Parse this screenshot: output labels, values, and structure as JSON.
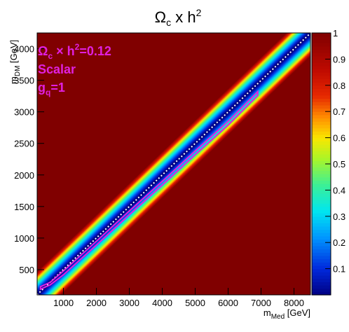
{
  "chart_data": {
    "type": "heatmap",
    "title": {
      "base": "Ω",
      "sub": "c",
      "rest": " x h",
      "sup": "2"
    },
    "xlabel": {
      "base": "m",
      "sub": "Med",
      "rest": " [GeV]"
    },
    "ylabel": {
      "base": "m",
      "sub": "DM",
      "rest": " [GeV]"
    },
    "xlim": [
      200,
      8500
    ],
    "ylim": [
      100,
      4250
    ],
    "x_ticks": [
      1000,
      2000,
      3000,
      4000,
      5000,
      6000,
      7000,
      8000
    ],
    "x_tick_labels": [
      "1000",
      "2000",
      "3000",
      "4000",
      "5000",
      "6000",
      "7000",
      "8000"
    ],
    "y_ticks": [
      500,
      1000,
      1500,
      2000,
      2500,
      3000,
      3500,
      4000
    ],
    "y_tick_labels": [
      "500",
      "1000",
      "1500",
      "2000",
      "2500",
      "3000",
      "3500",
      "4000"
    ],
    "z_range": [
      0,
      1
    ],
    "z_ticks": [
      0.1,
      0.2,
      0.3,
      0.4,
      0.5,
      0.6,
      0.7,
      0.8,
      0.9,
      1
    ],
    "z_tick_labels": [
      "0.1",
      "0.2",
      "0.3",
      "0.4",
      "0.5",
      "0.6",
      "0.7",
      "0.8",
      "0.9",
      "1"
    ],
    "colormap": "rainbow",
    "background_value": 1,
    "diagonal_valley": {
      "x": [
        200,
        8500
      ],
      "y": [
        100,
        4250
      ],
      "min_value": 0
    },
    "contour_relic_0_12": {
      "color": "#e020e0",
      "x": [
        300,
        600,
        1000,
        2000,
        3000,
        4000,
        5000,
        6000,
        6900,
        6900,
        6000,
        5000,
        4000,
        3000,
        2000,
        1000,
        600,
        300
      ],
      "y": [
        230,
        300,
        480,
        950,
        1430,
        1900,
        2380,
        2850,
        3320,
        3260,
        2790,
        2320,
        1840,
        1370,
        890,
        420,
        260,
        190
      ]
    },
    "annotations": [
      {
        "base": "Ω",
        "sub": "c",
        "rest": " × h",
        "sup": "2",
        "tail": "=0.12"
      },
      {
        "text": "Scalar"
      },
      {
        "base": "g",
        "sub": "q",
        "tail": "=1"
      }
    ]
  }
}
